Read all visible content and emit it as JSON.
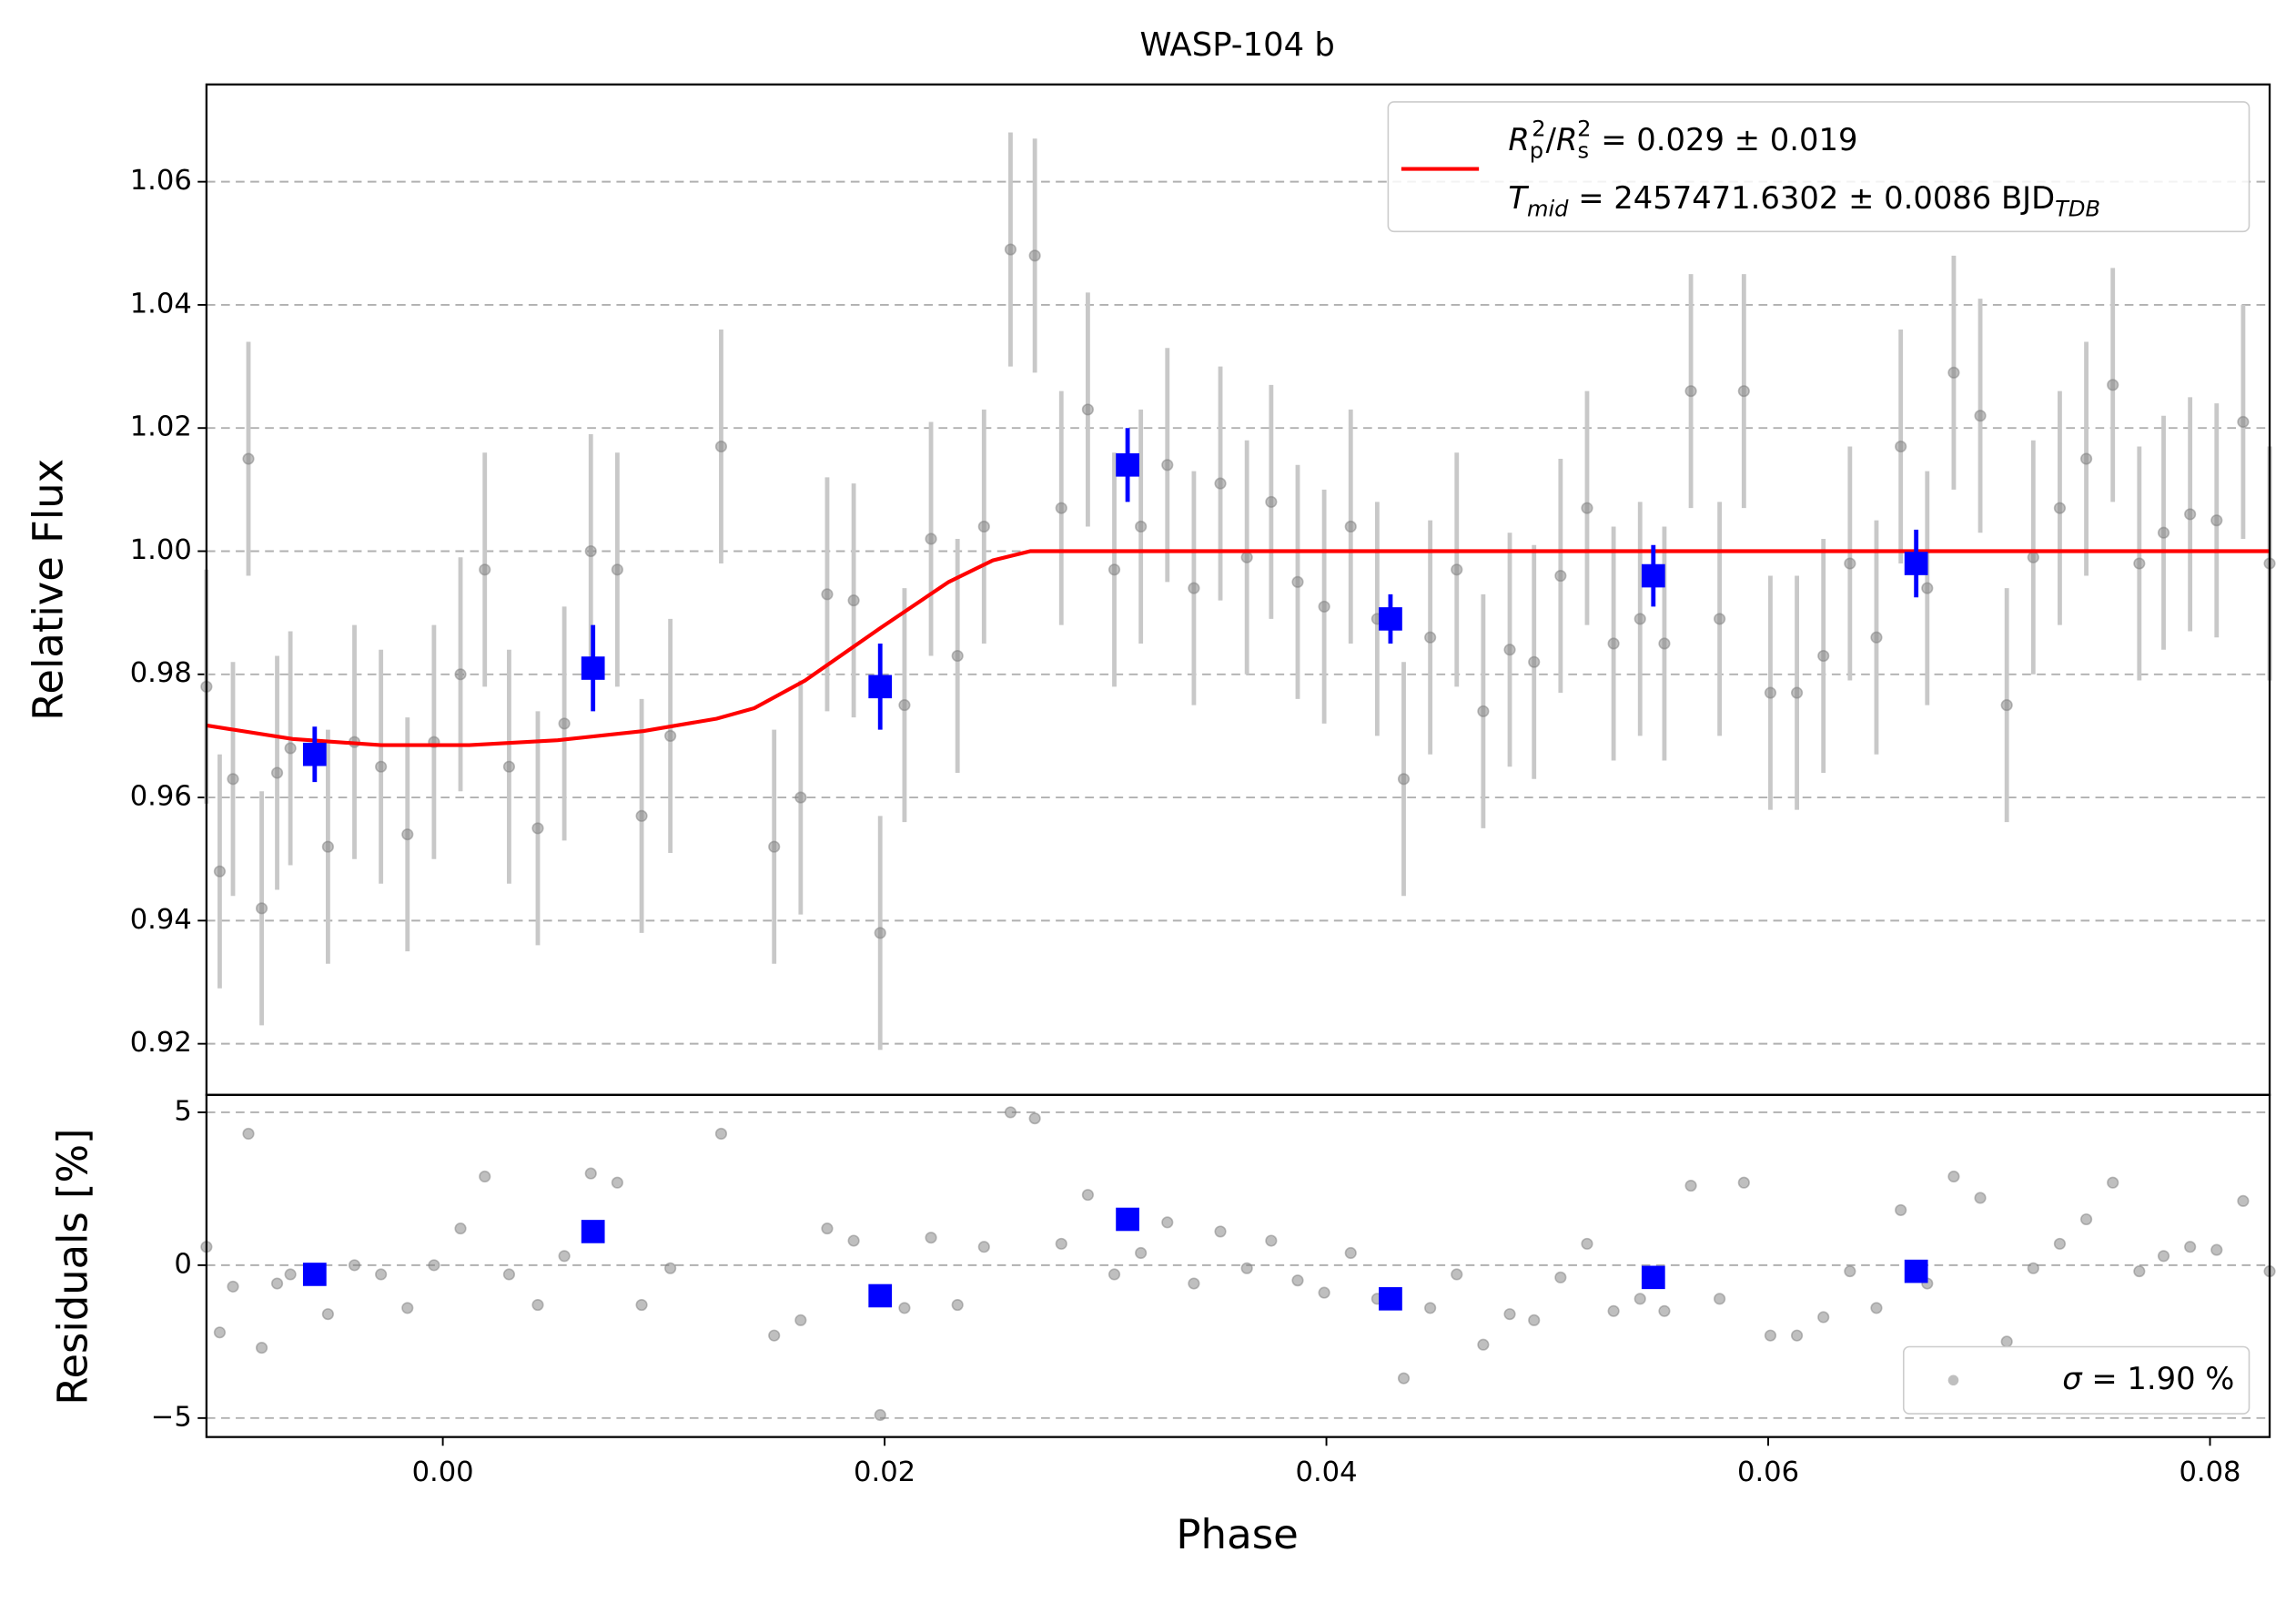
{
  "chart_data": [
    {
      "type": "errorbar",
      "title": "WASP-104 b",
      "ylabel": "Relative Flux",
      "xlim": [
        -0.0107,
        0.0827
      ],
      "ylim": [
        0.9117,
        1.0758
      ],
      "yticks": [
        0.92,
        0.94,
        0.96,
        0.98,
        {
          "value": 1,
          "label": "1.00"
        },
        1.02,
        1.04,
        1.06
      ],
      "grid": "y",
      "legend": "upper right",
      "series": [
        {
          "style": "points",
          "color": "#808080",
          "errcolor": "#c8c8c8",
          "yerr": 0.019,
          "x": [
            -0.0107,
            -0.0101,
            -0.0095,
            -0.0088,
            -0.0082,
            -0.0075,
            -0.0069,
            -0.0052,
            -0.004,
            -0.0028,
            -0.0016,
            -0.0004,
            0.0008,
            0.0019,
            0.003,
            0.0043,
            0.0055,
            0.0067,
            0.0079,
            0.009,
            0.0103,
            0.0126,
            0.015,
            0.0162,
            0.0174,
            0.0186,
            0.0198,
            0.0209,
            0.0221,
            0.0233,
            0.0245,
            0.0257,
            0.0268,
            0.028,
            0.0292,
            0.0304,
            0.0316,
            0.0328,
            0.034,
            0.0352,
            0.0364,
            0.0375,
            0.0387,
            0.0399,
            0.0411,
            0.0423,
            0.0435,
            0.0447,
            0.0459,
            0.0471,
            0.0483,
            0.0494,
            0.0506,
            0.0518,
            0.053,
            0.0542,
            0.0553,
            0.0565,
            0.0578,
            0.0589,
            0.0601,
            0.0613,
            0.0625,
            0.0637,
            0.0649,
            0.066,
            0.0672,
            0.0684,
            0.0696,
            0.0708,
            0.072,
            0.0732,
            0.0744,
            0.0756,
            0.0768,
            0.0779,
            0.0791,
            0.0803,
            0.0815,
            0.0827
          ],
          "values": [
            0.978,
            0.948,
            0.963,
            1.015,
            0.942,
            0.964,
            0.968,
            0.952,
            0.969,
            0.965,
            0.954,
            0.969,
            0.98,
            0.997,
            0.965,
            0.955,
            0.972,
            1.0,
            0.997,
            0.957,
            0.97,
            1.017,
            0.952,
            0.96,
            0.993,
            0.992,
            0.938,
            0.975,
            1.002,
            0.983,
            1.004,
            1.049,
            1.048,
            1.007,
            1.023,
            0.997,
            1.004,
            1.014,
            0.994,
            1.011,
            0.999,
            1.008,
            0.995,
            0.991,
            1.004,
            0.989,
            0.963,
            0.986,
            0.997,
            0.974,
            0.984,
            0.982,
            0.996,
            1.007,
            0.985,
            0.989,
            0.985,
            1.026,
            0.989,
            1.026,
            0.977,
            0.977,
            0.983,
            0.998,
            0.986,
            1.017,
            0.994,
            1.029,
            1.022,
            0.975,
            0.999,
            1.007,
            1.015,
            1.027,
            0.998,
            1.003,
            1.006,
            1.005,
            1.021,
            0.998
          ]
        },
        {
          "style": "line",
          "color": "#ff0000",
          "name_parts": [
            [
              "R",
              "i"
            ],
            [
              "p",
              "sub"
            ],
            [
              "2",
              "sup"
            ],
            [
              "/",
              ""
            ],
            [
              "R",
              "i"
            ],
            [
              "s",
              "sub"
            ],
            [
              "2",
              "sup"
            ],
            [
              " = 0.029 ± 0.019",
              ""
            ]
          ],
          "name_parts2": [
            [
              "T",
              "i"
            ],
            [
              "mid",
              "isub"
            ],
            [
              " = 2457471.6302 ± 0.0086 BJD",
              ""
            ],
            [
              "TDB",
              "isub"
            ]
          ],
          "x": [
            -0.0107,
            -0.0068,
            -0.0028,
            0.0012,
            0.0052,
            0.0091,
            0.0124,
            0.0141,
            0.0164,
            0.0198,
            0.0229,
            0.0249,
            0.0266,
            0.0827
          ],
          "values": [
            0.9717,
            0.9695,
            0.9685,
            0.9685,
            0.9693,
            0.9708,
            0.9728,
            0.9745,
            0.979,
            0.9875,
            0.995,
            0.9985,
            1.0,
            1.0
          ]
        },
        {
          "style": "binned",
          "color": "#0000ff",
          "x": [
            -0.0058,
            0.0068,
            0.0198,
            0.031,
            0.0429,
            0.0548,
            0.0667
          ],
          "values": [
            0.967,
            0.981,
            0.978,
            1.014,
            0.989,
            0.996,
            0.998
          ],
          "yerr": [
            0.0045,
            0.007,
            0.007,
            0.006,
            0.004,
            0.005,
            0.0055
          ]
        }
      ]
    },
    {
      "type": "errorbar",
      "xlabel": "Phase",
      "ylabel": "Residuals [%]",
      "xlim": [
        -0.0107,
        0.0827
      ],
      "ylim": [
        -5.62,
        5.57
      ],
      "xticks": [
        {
          "value": 0,
          "label": "0.00"
        },
        0.02,
        0.04,
        0.06,
        0.08
      ],
      "yticks": [
        {
          "value": -5,
          "label": "−5"
        },
        0,
        5
      ],
      "grid": "y",
      "legend": "lower right",
      "series": [
        {
          "style": "points",
          "color": "#808080",
          "name_parts": [
            [
              "σ",
              "i"
            ],
            [
              " = 1.90 %",
              ""
            ]
          ],
          "x": [
            -0.0107,
            -0.0101,
            -0.0095,
            -0.0088,
            -0.0082,
            -0.0075,
            -0.0069,
            -0.0052,
            -0.004,
            -0.0028,
            -0.0016,
            -0.0004,
            0.0008,
            0.0019,
            0.003,
            0.0043,
            0.0055,
            0.0067,
            0.0079,
            0.009,
            0.0103,
            0.0126,
            0.015,
            0.0162,
            0.0174,
            0.0186,
            0.0198,
            0.0209,
            0.0221,
            0.0233,
            0.0245,
            0.0257,
            0.0268,
            0.028,
            0.0292,
            0.0304,
            0.0316,
            0.0328,
            0.034,
            0.0352,
            0.0364,
            0.0375,
            0.0387,
            0.0399,
            0.0411,
            0.0423,
            0.0435,
            0.0447,
            0.0459,
            0.0471,
            0.0483,
            0.0494,
            0.0506,
            0.0518,
            0.053,
            0.0542,
            0.0553,
            0.0565,
            0.0578,
            0.0589,
            0.0601,
            0.0613,
            0.0625,
            0.0637,
            0.0649,
            0.066,
            0.0672,
            0.0684,
            0.0696,
            0.0708,
            0.072,
            0.0732,
            0.0744,
            0.0756,
            0.0768,
            0.0779,
            0.0791,
            0.0803,
            0.0815,
            0.0827
          ],
          "values": [
            0.6,
            -2.2,
            -0.7,
            4.3,
            -2.7,
            -0.6,
            -0.3,
            -1.6,
            0.0,
            -0.3,
            -1.4,
            0.0,
            1.2,
            2.9,
            -0.3,
            -1.3,
            0.3,
            3.0,
            2.7,
            -1.3,
            -0.1,
            4.3,
            -2.3,
            -1.8,
            1.2,
            0.8,
            -4.9,
            -1.4,
            0.9,
            -1.3,
            0.6,
            5.0,
            4.8,
            0.7,
            2.3,
            -0.3,
            0.4,
            1.4,
            -0.6,
            1.1,
            -0.1,
            0.8,
            -0.5,
            -0.9,
            0.4,
            -1.1,
            -3.7,
            -1.4,
            -0.3,
            -2.6,
            -1.6,
            -1.8,
            -0.4,
            0.7,
            -1.5,
            -1.1,
            -1.5,
            2.6,
            -1.1,
            2.7,
            -2.3,
            -2.3,
            -1.7,
            -0.2,
            -1.4,
            1.8,
            -0.6,
            2.9,
            2.2,
            -2.5,
            -0.1,
            0.7,
            1.5,
            2.7,
            -0.2,
            0.3,
            0.6,
            0.5,
            2.1,
            -0.2
          ]
        },
        {
          "style": "binned",
          "color": "#0000ff",
          "x": [
            -0.0058,
            0.0068,
            0.0198,
            0.031,
            0.0429,
            0.0548,
            0.0667
          ],
          "values": [
            -0.3,
            1.1,
            -1.0,
            1.5,
            -1.1,
            -0.4,
            -0.2
          ]
        }
      ]
    }
  ]
}
